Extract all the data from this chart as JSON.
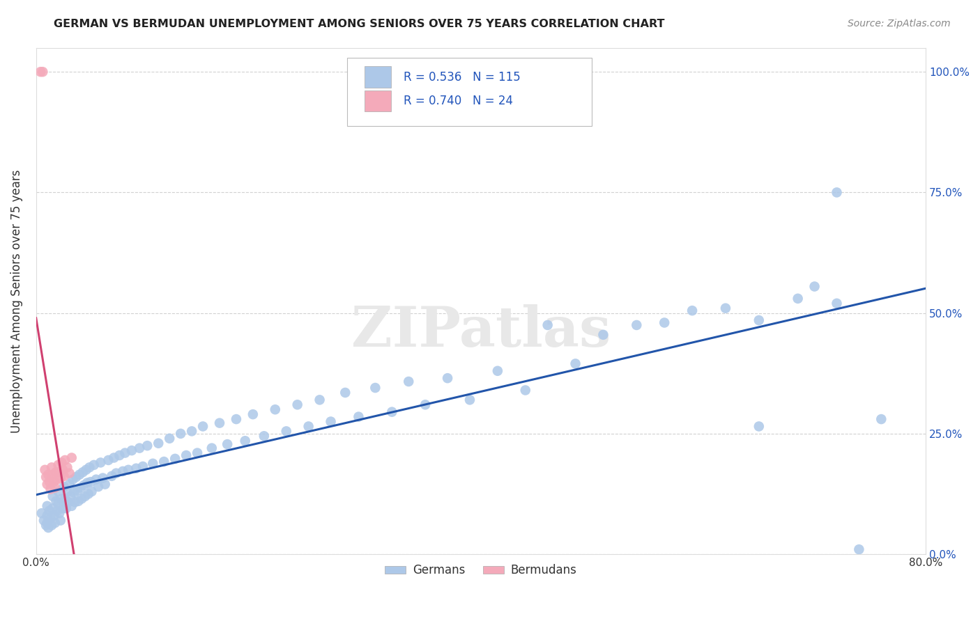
{
  "title": "GERMAN VS BERMUDAN UNEMPLOYMENT AMONG SENIORS OVER 75 YEARS CORRELATION CHART",
  "source": "Source: ZipAtlas.com",
  "ylabel": "Unemployment Among Seniors over 75 years",
  "xlim": [
    0.0,
    0.8
  ],
  "ylim": [
    0.0,
    1.05
  ],
  "xticks": [
    0.0,
    0.1,
    0.2,
    0.3,
    0.4,
    0.5,
    0.6,
    0.7,
    0.8
  ],
  "xticklabels": [
    "0.0%",
    "",
    "",
    "",
    "",
    "",
    "",
    "",
    "80.0%"
  ],
  "yticks": [
    0.0,
    0.25,
    0.5,
    0.75,
    1.0
  ],
  "yticklabels": [
    "0.0%",
    "25.0%",
    "50.0%",
    "75.0%",
    "100.0%"
  ],
  "german_color": "#adc8e8",
  "bermudan_color": "#f4aaba",
  "german_line_color": "#2255aa",
  "bermudan_line_color": "#d04070",
  "R_german": 0.536,
  "N_german": 115,
  "R_bermudan": 0.74,
  "N_bermudan": 24,
  "watermark": "ZIPatlas",
  "background_color": "#ffffff",
  "legend_label_german": "Germans",
  "legend_label_bermudan": "Bermudans",
  "german_x": [
    0.005,
    0.007,
    0.009,
    0.01,
    0.01,
    0.01,
    0.011,
    0.012,
    0.013,
    0.014,
    0.015,
    0.015,
    0.016,
    0.017,
    0.018,
    0.019,
    0.02,
    0.02,
    0.021,
    0.022,
    0.023,
    0.024,
    0.025,
    0.026,
    0.027,
    0.028,
    0.029,
    0.03,
    0.031,
    0.032,
    0.033,
    0.034,
    0.035,
    0.036,
    0.037,
    0.038,
    0.039,
    0.04,
    0.041,
    0.042,
    0.043,
    0.044,
    0.045,
    0.046,
    0.047,
    0.048,
    0.049,
    0.05,
    0.052,
    0.054,
    0.056,
    0.058,
    0.06,
    0.062,
    0.065,
    0.068,
    0.07,
    0.072,
    0.075,
    0.078,
    0.08,
    0.083,
    0.086,
    0.09,
    0.093,
    0.096,
    0.1,
    0.105,
    0.11,
    0.115,
    0.12,
    0.125,
    0.13,
    0.135,
    0.14,
    0.145,
    0.15,
    0.158,
    0.165,
    0.172,
    0.18,
    0.188,
    0.195,
    0.205,
    0.215,
    0.225,
    0.235,
    0.245,
    0.255,
    0.265,
    0.278,
    0.29,
    0.305,
    0.32,
    0.335,
    0.35,
    0.37,
    0.39,
    0.415,
    0.44,
    0.46,
    0.485,
    0.51,
    0.54,
    0.565,
    0.59,
    0.62,
    0.65,
    0.685,
    0.72,
    0.65,
    0.7,
    0.72,
    0.74,
    0.76
  ],
  "german_y": [
    0.085,
    0.07,
    0.06,
    0.1,
    0.08,
    0.065,
    0.055,
    0.09,
    0.075,
    0.06,
    0.12,
    0.095,
    0.08,
    0.065,
    0.11,
    0.09,
    0.13,
    0.105,
    0.085,
    0.07,
    0.115,
    0.095,
    0.14,
    0.115,
    0.095,
    0.13,
    0.108,
    0.145,
    0.12,
    0.1,
    0.155,
    0.128,
    0.108,
    0.16,
    0.132,
    0.11,
    0.165,
    0.138,
    0.115,
    0.17,
    0.143,
    0.12,
    0.175,
    0.148,
    0.125,
    0.18,
    0.15,
    0.13,
    0.185,
    0.155,
    0.14,
    0.19,
    0.158,
    0.145,
    0.195,
    0.162,
    0.2,
    0.168,
    0.205,
    0.172,
    0.21,
    0.175,
    0.215,
    0.178,
    0.22,
    0.182,
    0.225,
    0.188,
    0.23,
    0.192,
    0.24,
    0.198,
    0.25,
    0.205,
    0.255,
    0.21,
    0.265,
    0.22,
    0.272,
    0.228,
    0.28,
    0.235,
    0.29,
    0.245,
    0.3,
    0.255,
    0.31,
    0.265,
    0.32,
    0.275,
    0.335,
    0.285,
    0.345,
    0.295,
    0.358,
    0.31,
    0.365,
    0.32,
    0.38,
    0.34,
    0.475,
    0.395,
    0.455,
    0.475,
    0.48,
    0.505,
    0.51,
    0.485,
    0.53,
    0.52,
    0.265,
    0.555,
    0.75,
    0.01,
    0.28
  ],
  "bermudan_x": [
    0.004,
    0.006,
    0.008,
    0.009,
    0.01,
    0.011,
    0.012,
    0.013,
    0.014,
    0.015,
    0.016,
    0.017,
    0.018,
    0.019,
    0.02,
    0.021,
    0.022,
    0.023,
    0.024,
    0.025,
    0.026,
    0.028,
    0.03,
    0.032
  ],
  "bermudan_y": [
    1.0,
    1.0,
    0.175,
    0.16,
    0.145,
    0.165,
    0.15,
    0.135,
    0.18,
    0.165,
    0.15,
    0.138,
    0.17,
    0.155,
    0.185,
    0.17,
    0.158,
    0.19,
    0.175,
    0.162,
    0.195,
    0.18,
    0.168,
    0.2
  ]
}
